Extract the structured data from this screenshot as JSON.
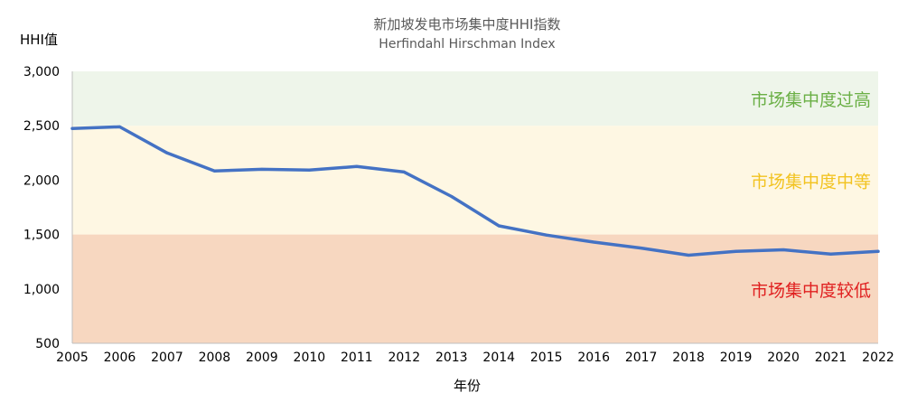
{
  "chart_data": {
    "type": "line",
    "title": "新加坡发电市场集中度HHI指数",
    "subtitle": "Herfindahl Hirschman Index",
    "xlabel": "年份",
    "ylabel": "HHI值",
    "x": [
      "2005",
      "2006",
      "2007",
      "2008",
      "2009",
      "2010",
      "2011",
      "2012",
      "2013",
      "2014",
      "2015",
      "2016",
      "2017",
      "2018",
      "2019",
      "2020",
      "2021",
      "2022"
    ],
    "series": [
      {
        "values": [
          2475,
          2490,
          2250,
          2085,
          2100,
          2093,
          2125,
          2075,
          1850,
          1580,
          1495,
          1430,
          1375,
          1310,
          1345,
          1360,
          1320,
          1345
        ],
        "color": "#4472C4"
      }
    ],
    "ylim": [
      500,
      3000
    ],
    "yticks": [
      "500",
      "1,000",
      "1,500",
      "2,000",
      "2,500",
      "3,000"
    ],
    "ytick_values": [
      500,
      1000,
      1500,
      2000,
      2500,
      3000
    ],
    "grid": false,
    "bands": [
      {
        "from": 2500,
        "to": 3000,
        "label": "市场集中度过高",
        "color": "#EEF5EA",
        "label_color": "#6AAF45"
      },
      {
        "from": 1500,
        "to": 2500,
        "label": "市场集中度中等",
        "color": "#FEF7E3",
        "label_color": "#F2C320"
      },
      {
        "from": 500,
        "to": 1500,
        "label": "市场集中度较低",
        "color": "#F7D7C0",
        "label_color": "#E02020"
      }
    ]
  }
}
